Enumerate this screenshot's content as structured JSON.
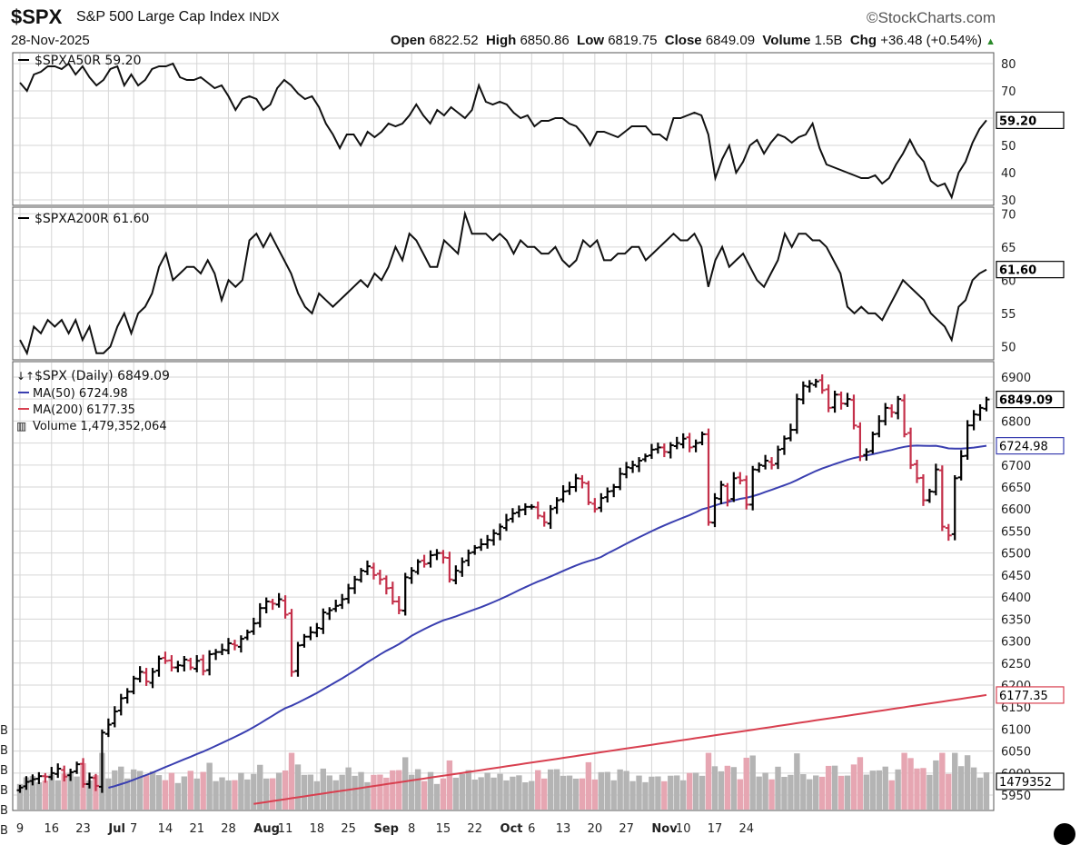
{
  "header": {
    "ticker": "$SPX",
    "name": "S&P 500 Large Cap Index",
    "exchange": "INDX",
    "date": "28-Nov-2025",
    "brand": "©StockCharts.com",
    "open_label": "Open",
    "open": "6822.52",
    "high_label": "High",
    "high": "6850.86",
    "low_label": "Low",
    "low": "6819.75",
    "close_label": "Close",
    "close": "6849.09",
    "volume_label": "Volume",
    "volume": "1.5B",
    "chg_label": "Chg",
    "chg": "+36.48 (+0.54%)"
  },
  "colors": {
    "up": "#000000",
    "down": "#c4304a",
    "ma50": "#3a3fb0",
    "ma200": "#d84050",
    "vol_up": "#b4b4b4",
    "vol_down": "#e6a6b2",
    "grid": "#d6d6d6"
  },
  "chart_data": [
    {
      "type": "line",
      "title": "$SPXA50R 59.20",
      "last_value": "59.20",
      "ylim": [
        28,
        84
      ],
      "yticks": [
        30,
        40,
        50,
        60,
        70,
        80
      ],
      "values": [
        73,
        70,
        76,
        77,
        79,
        79,
        78,
        80,
        76,
        79,
        75,
        72,
        74,
        78,
        79,
        72,
        76,
        72,
        74,
        78,
        79,
        79,
        80,
        75,
        74,
        74,
        75,
        73,
        71,
        72,
        68,
        63,
        67,
        68,
        67,
        63,
        65,
        71,
        74,
        72,
        69,
        67,
        68,
        64,
        58,
        54,
        49,
        54,
        54,
        50,
        55,
        53,
        55,
        58,
        57,
        58,
        61,
        65,
        61,
        58,
        63,
        61,
        64,
        62,
        60,
        63,
        72,
        66,
        65,
        66,
        65,
        62,
        60,
        61,
        57,
        59,
        59,
        60,
        60,
        58,
        57,
        54,
        50,
        55,
        55,
        54,
        53,
        55,
        57,
        57,
        57,
        54,
        54,
        52,
        60,
        60,
        61,
        62,
        61,
        54,
        38,
        45,
        50,
        40,
        44,
        50,
        52,
        47,
        51,
        54,
        53,
        51,
        53,
        54,
        58,
        49,
        43,
        42,
        41,
        40,
        39,
        38,
        38,
        39,
        36,
        38,
        43,
        47,
        52,
        47,
        44,
        37,
        35,
        36,
        31,
        40,
        44,
        51,
        56,
        59.2
      ]
    },
    {
      "type": "line",
      "title": "$SPXA200R 61.60",
      "last_value": "61.60",
      "ylim": [
        48,
        71
      ],
      "yticks": [
        50,
        55,
        60,
        65,
        70
      ],
      "values": [
        51,
        49,
        53,
        52,
        54,
        53,
        54,
        52,
        54,
        51,
        53,
        49,
        49,
        50,
        53,
        55,
        52,
        55,
        56,
        58,
        62,
        64,
        60,
        61,
        62,
        62,
        61,
        63,
        61,
        57,
        60,
        59,
        60,
        66,
        67,
        65,
        67,
        65,
        63,
        61,
        58,
        56,
        55,
        58,
        57,
        56,
        57,
        58,
        59,
        60,
        59,
        61,
        60,
        62,
        65,
        63,
        67,
        66,
        64,
        62,
        62,
        66,
        65,
        64,
        70,
        67,
        67,
        67,
        66,
        67,
        66,
        64,
        66,
        65,
        65,
        64,
        64,
        65,
        63,
        62,
        63,
        66,
        65,
        66,
        63,
        63,
        64,
        64,
        65,
        65,
        63,
        64,
        65,
        66,
        67,
        66,
        66,
        67,
        65,
        59,
        63,
        65,
        62,
        63,
        64,
        62,
        60,
        59,
        61,
        63,
        67,
        65,
        67,
        67,
        66,
        66,
        65,
        63,
        61,
        56,
        55,
        56,
        55,
        55,
        54,
        56,
        58,
        60,
        59,
        58,
        57,
        55,
        54,
        53,
        51,
        56,
        57,
        60,
        61,
        61.6
      ]
    },
    {
      "type": "ohlc",
      "title": "$SPX (Daily) 6849.09",
      "last_value": "6849.09",
      "ma50_label": "MA(50) 6724.98",
      "ma50_last": "6724.98",
      "ma200_label": "MA(200) 6177.35",
      "ma200_last": "6177.35",
      "volume_label": "Volume 1,479,352,064",
      "volume_last": "1479352",
      "ylim": [
        5915,
        6935
      ],
      "yticks": [
        5950,
        6000,
        6050,
        6100,
        6150,
        6200,
        6250,
        6300,
        6350,
        6400,
        6450,
        6500,
        6550,
        6600,
        6650,
        6700,
        6750,
        6800,
        6850,
        6900
      ],
      "xticks": [
        "9",
        "16",
        "23",
        "Jul",
        "7",
        "14",
        "21",
        "28",
        "Aug",
        "11",
        "18",
        "25",
        "Sep",
        "8",
        "15",
        "22",
        "Oct",
        "6",
        "13",
        "20",
        "27",
        "Nov",
        "10",
        "17",
        "24"
      ],
      "xtick_bold": [
        "Jul",
        "Aug",
        "Sep",
        "Oct",
        "Nov"
      ],
      "xtick_days": [
        0,
        5,
        10,
        14,
        18,
        23,
        28,
        33,
        37,
        42,
        47,
        52,
        56,
        62,
        67,
        72,
        76,
        81,
        86,
        91,
        96,
        100,
        105,
        110,
        115
      ],
      "volume_axis_labels": [
        "B",
        "B",
        "B",
        "B",
        "B",
        "B"
      ],
      "ma50_start": [
        5930,
        5975,
        6030,
        6080,
        6130,
        6170
      ],
      "ma200_start": [
        5930,
        5938,
        5946
      ],
      "closes": [
        5967,
        5980,
        5986,
        5993,
        5992,
        6000,
        6010,
        5992,
        6002,
        6020,
        5975,
        5990,
        5971,
        6092,
        6110,
        6140,
        6170,
        6185,
        6215,
        6230,
        6208,
        6230,
        6260,
        6255,
        6240,
        6245,
        6258,
        6240,
        6255,
        6232,
        6270,
        6275,
        6280,
        6295,
        6290,
        6305,
        6320,
        6340,
        6375,
        6390,
        6385,
        6395,
        6360,
        6230,
        6290,
        6310,
        6320,
        6330,
        6365,
        6370,
        6380,
        6395,
        6420,
        6440,
        6460,
        6470,
        6450,
        6440,
        6420,
        6390,
        6370,
        6445,
        6460,
        6480,
        6475,
        6495,
        6500,
        6490,
        6440,
        6460,
        6480,
        6500,
        6512,
        6520,
        6530,
        6545,
        6560,
        6575,
        6590,
        6598,
        6605,
        6605,
        6585,
        6570,
        6600,
        6620,
        6640,
        6650,
        6670,
        6660,
        6615,
        6600,
        6625,
        6640,
        6650,
        6680,
        6695,
        6700,
        6710,
        6720,
        6735,
        6740,
        6730,
        6745,
        6750,
        6760,
        6740,
        6750,
        6770,
        6570,
        6625,
        6655,
        6620,
        6670,
        6665,
        6610,
        6690,
        6700,
        6710,
        6700,
        6735,
        6760,
        6780,
        6850,
        6880,
        6885,
        6890,
        6870,
        6830,
        6860,
        6840,
        6850,
        6790,
        6720,
        6730,
        6770,
        6800,
        6830,
        6820,
        6850,
        6770,
        6700,
        6670,
        6620,
        6640,
        6690,
        6560,
        6540,
        6670,
        6720,
        6790,
        6815,
        6830,
        6849.09
      ]
    }
  ]
}
